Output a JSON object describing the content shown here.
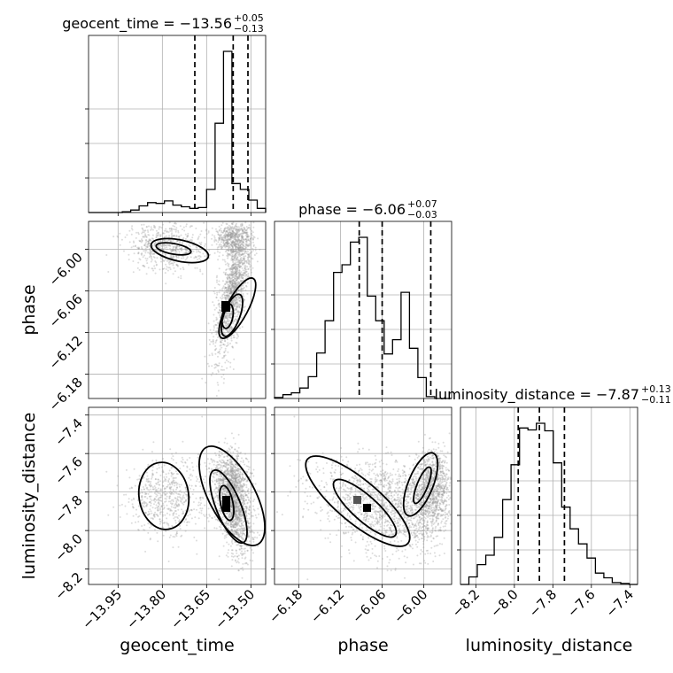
{
  "chart_data": {
    "type": "corner",
    "parameters": [
      "geocent_time",
      "phase",
      "luminosity_distance"
    ],
    "titles": [
      {
        "text": "geocent_time = −13.56",
        "plus": "+0.05",
        "minus": "−0.13"
      },
      {
        "text": "phase = −6.06",
        "plus": "+0.07",
        "minus": "−0.03"
      },
      {
        "text": "luminosity_distance = −7.87",
        "plus": "+0.13",
        "minus": "−0.11"
      }
    ],
    "ranges": [
      [
        -14.05,
        -13.45
      ],
      [
        -6.215,
        -5.96
      ],
      [
        -8.28,
        -7.36
      ]
    ],
    "ticks": [
      {
        "values": [
          -13.95,
          -13.8,
          -13.65,
          -13.5
        ],
        "labels": [
          "−13.95",
          "−13.80",
          "−13.65",
          "−13.50"
        ]
      },
      {
        "values": [
          -6.18,
          -6.12,
          -6.06,
          -6.0
        ],
        "labels": [
          "−6.18",
          "−6.12",
          "−6.06",
          "−6.00"
        ]
      },
      {
        "values": [
          -8.2,
          -8.0,
          -7.8,
          -7.6,
          -7.4
        ],
        "labels": [
          "−8.2",
          "−8.0",
          "−7.8",
          "−7.6",
          "−7.4"
        ]
      }
    ],
    "quantiles": [
      [
        -13.69,
        -13.56,
        -13.51
      ],
      [
        -6.093,
        -6.06,
        -5.99
      ],
      [
        -7.98,
        -7.87,
        -7.74
      ]
    ],
    "histograms": [
      {
        "counts": [
          0,
          0,
          0,
          0,
          1,
          3,
          8,
          12,
          11,
          14,
          9,
          7,
          5,
          6,
          28,
          108,
          195,
          35,
          28,
          15,
          5
        ]
      },
      {
        "counts": [
          1,
          4,
          6,
          11,
          23,
          48,
          82,
          133,
          141,
          165,
          170,
          108,
          82,
          47,
          62,
          112,
          53,
          22,
          2,
          0,
          0
        ]
      },
      {
        "counts": [
          0,
          8,
          21,
          31,
          50,
          90,
          127,
          166,
          164,
          171,
          163,
          129,
          82,
          59,
          43,
          28,
          12,
          7,
          2,
          1,
          0
        ]
      }
    ],
    "grid": true
  }
}
